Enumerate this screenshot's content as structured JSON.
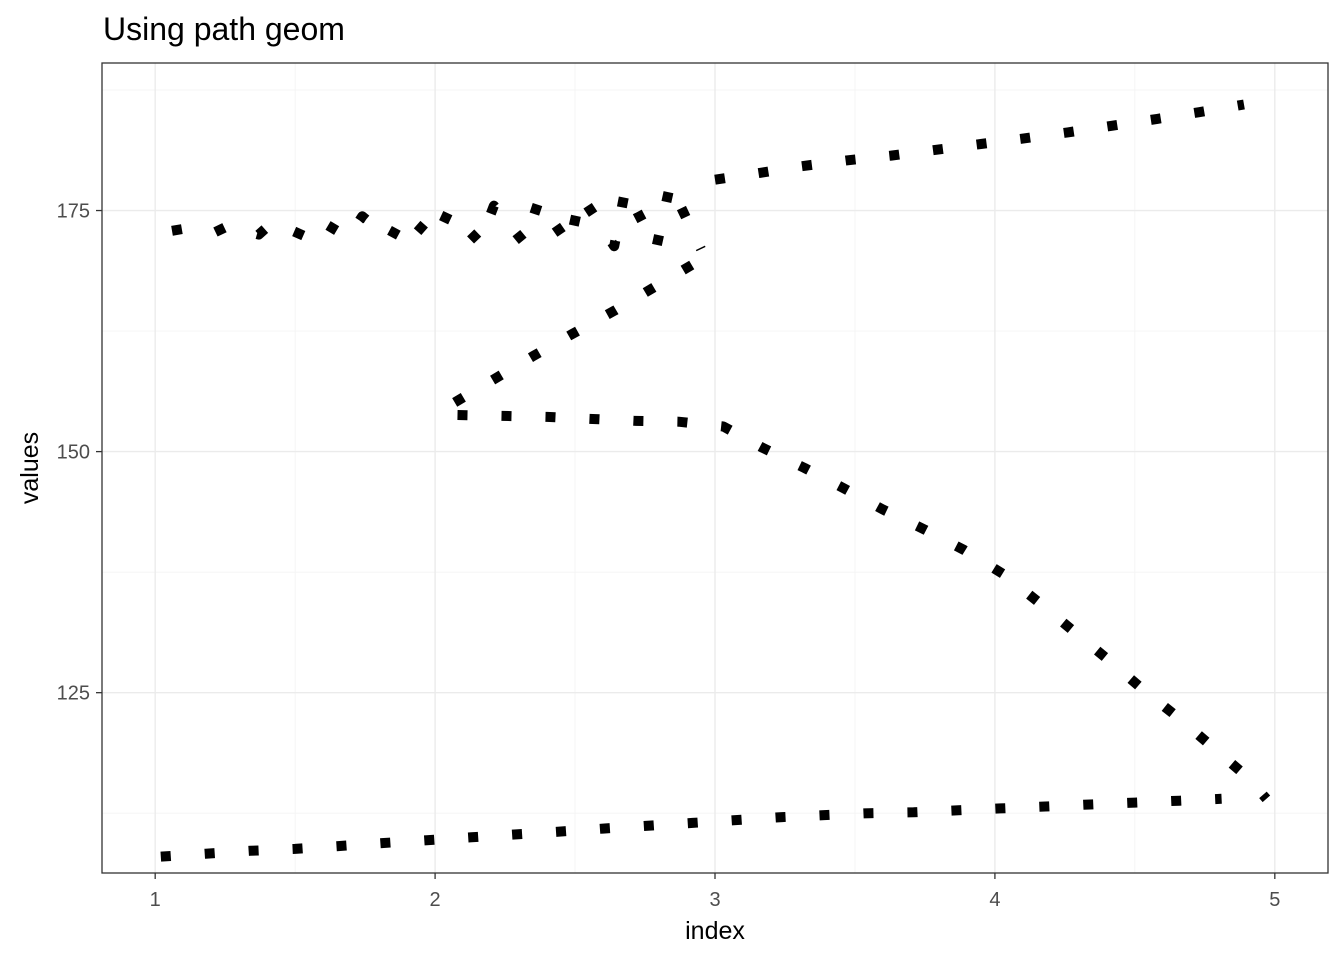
{
  "chart_data": {
    "type": "line",
    "title": "Using path geom",
    "xlabel": "index",
    "ylabel": "values",
    "xlim": [
      0.81,
      5.19
    ],
    "ylim": [
      106.3,
      190.3
    ],
    "x_ticks": [
      1,
      2,
      3,
      4,
      5
    ],
    "y_ticks": [
      125,
      150,
      175
    ],
    "x_tick_labels": [
      "1",
      "2",
      "3",
      "4",
      "5"
    ],
    "y_tick_labels": [
      "125",
      "150",
      "175"
    ],
    "grid": true,
    "line_style": "dotted",
    "line_color": "#000000",
    "series": [
      {
        "x": [
          1.06,
          1.1,
          1.21,
          1.26,
          1.37,
          1.42,
          1.53,
          1.58,
          1.69,
          1.74,
          1.84,
          1.89,
          2.0,
          2.05,
          2.16,
          2.21,
          2.32,
          2.37,
          2.48,
          2.52,
          2.64,
          2.68,
          2.79,
          2.84,
          2.95
        ],
        "y": [
          172.9,
          173.1,
          172.7,
          173.4,
          172.5,
          173.8,
          172.4,
          174.1,
          172.2,
          174.4,
          172.0,
          174.7,
          171.9,
          175.0,
          171.7,
          175.5,
          171.6,
          176.0,
          171.4,
          176.6,
          171.3,
          177.2,
          171.1,
          177.7,
          171.0
        ]
      },
      {
        "x": [
          3.0,
          3.16,
          3.31,
          3.47,
          3.63,
          3.79,
          3.95,
          4.11,
          4.26,
          4.42,
          4.58,
          4.73,
          4.89
        ],
        "y": [
          178.2,
          178.9,
          179.6,
          180.2,
          180.7,
          181.3,
          181.9,
          182.5,
          183.1,
          183.8,
          184.5,
          185.2,
          186.0
        ]
      },
      {
        "x": [
          2.07,
          2.21,
          2.35,
          2.49,
          2.64,
          2.78,
          2.92
        ],
        "y": [
          155.1,
          157.5,
          159.9,
          162.2,
          164.6,
          167.0,
          169.4
        ]
      },
      {
        "x": [
          2.08,
          2.24,
          2.4,
          2.55,
          2.71,
          2.87,
          3.03,
          3.17,
          3.32,
          3.46,
          3.6,
          3.75,
          3.89,
          4.03,
          4.16,
          4.28,
          4.41,
          4.53,
          4.66,
          4.78,
          4.9,
          4.97
        ],
        "y": [
          153.8,
          153.7,
          153.6,
          153.4,
          153.2,
          153.1,
          152.6,
          150.4,
          148.3,
          146.2,
          144.0,
          141.9,
          139.8,
          137.3,
          134.3,
          131.4,
          128.3,
          125.3,
          122.3,
          119.3,
          116.3,
          114.0
        ]
      },
      {
        "x": [
          1.02,
          1.18,
          1.34,
          1.5,
          1.66,
          1.81,
          1.97,
          2.13,
          2.29,
          2.45,
          2.6,
          2.76,
          2.92,
          3.08,
          3.24,
          3.39,
          3.55,
          3.71,
          3.87,
          4.02,
          4.18,
          4.34,
          4.5,
          4.66,
          4.81
        ],
        "y": [
          108.0,
          108.3,
          108.6,
          108.8,
          109.1,
          109.4,
          109.7,
          110.0,
          110.3,
          110.6,
          110.9,
          111.2,
          111.5,
          111.8,
          112.1,
          112.3,
          112.5,
          112.6,
          112.8,
          113.0,
          113.2,
          113.4,
          113.6,
          113.8,
          114.0
        ]
      }
    ]
  }
}
